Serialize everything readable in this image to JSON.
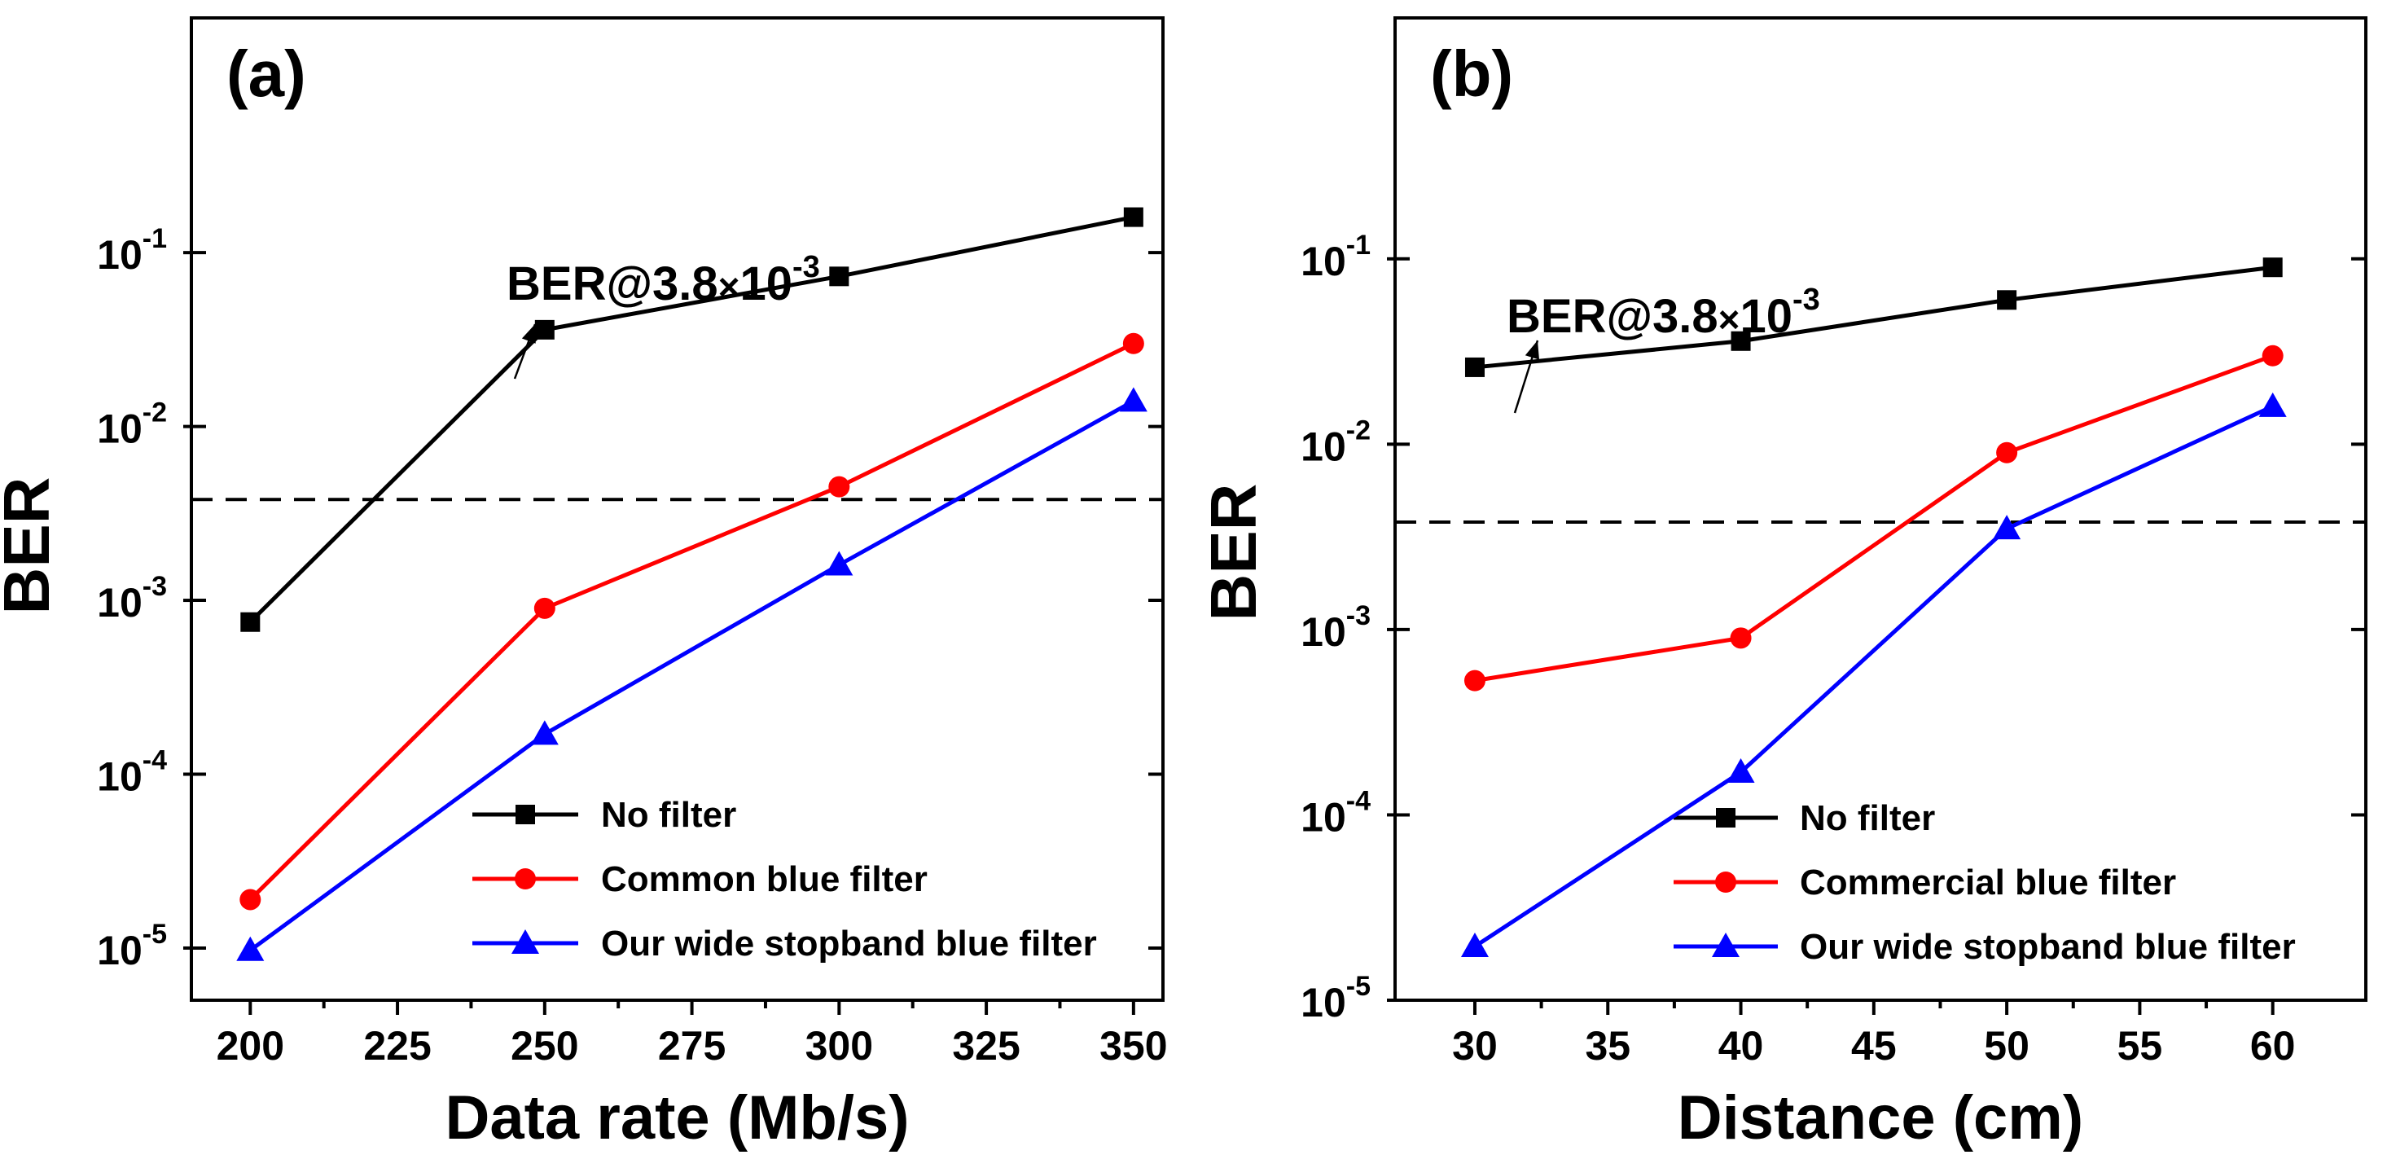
{
  "chart_data": [
    {
      "type": "line",
      "panel_label": "(a)",
      "xlabel": "Data rate (Mb/s)",
      "ylabel": "BER",
      "yscale": "log",
      "xlim": [
        190,
        355
      ],
      "ylim_exp": [
        -5.3,
        0.35
      ],
      "x_ticks": [
        200,
        225,
        250,
        275,
        300,
        325,
        350
      ],
      "y_tick_exps": [
        -5,
        -4,
        -3,
        -2,
        -1
      ],
      "threshold": {
        "value": 0.0038,
        "label_main": "BER@3.8",
        "label_times": "×",
        "label_base": "10",
        "label_exp": "-3"
      },
      "legend_position": "bottom-right",
      "series": [
        {
          "name": "No filter",
          "color": "#000000",
          "marker": "square",
          "x": [
            200,
            250,
            300,
            350
          ],
          "y": [
            0.00075,
            0.036,
            0.073,
            0.16
          ]
        },
        {
          "name": "Common blue filter",
          "color": "#ff0000",
          "marker": "circle",
          "x": [
            200,
            250,
            300,
            350
          ],
          "y": [
            1.9e-05,
            0.0009,
            0.0045,
            0.03
          ]
        },
        {
          "name": "Our wide stopband blue filter",
          "color": "#0000ff",
          "marker": "triangle",
          "x": [
            200,
            250,
            300,
            350
          ],
          "y": [
            9.7e-06,
            0.00017,
            0.0016,
            0.014
          ]
        }
      ]
    },
    {
      "type": "line",
      "panel_label": "(b)",
      "xlabel": "Distance (cm)",
      "ylabel": "BER",
      "yscale": "log",
      "xlim": [
        27,
        63.5
      ],
      "ylim_exp": [
        -5,
        0.3
      ],
      "x_ticks": [
        30,
        35,
        40,
        45,
        50,
        55,
        60
      ],
      "y_tick_exps": [
        -5,
        -4,
        -3,
        -2,
        -1
      ],
      "threshold": {
        "value": 0.0038,
        "label_main": "BER@3.8",
        "label_times": "×",
        "label_base": "10",
        "label_exp": "-3"
      },
      "legend_position": "bottom-right",
      "series": [
        {
          "name": "No filter",
          "color": "#000000",
          "marker": "square",
          "x": [
            30,
            40,
            50,
            60
          ],
          "y": [
            0.026,
            0.036,
            0.06,
            0.09
          ]
        },
        {
          "name": "Commercial blue filter",
          "color": "#ff0000",
          "marker": "circle",
          "x": [
            30,
            40,
            50,
            60
          ],
          "y": [
            0.00053,
            0.0009,
            0.009,
            0.03
          ]
        },
        {
          "name": "Our wide stopband blue filter",
          "color": "#0000ff",
          "marker": "triangle",
          "x": [
            30,
            40,
            50,
            60
          ],
          "y": [
            1.95e-05,
            0.00017,
            0.0035,
            0.016
          ]
        }
      ]
    }
  ]
}
